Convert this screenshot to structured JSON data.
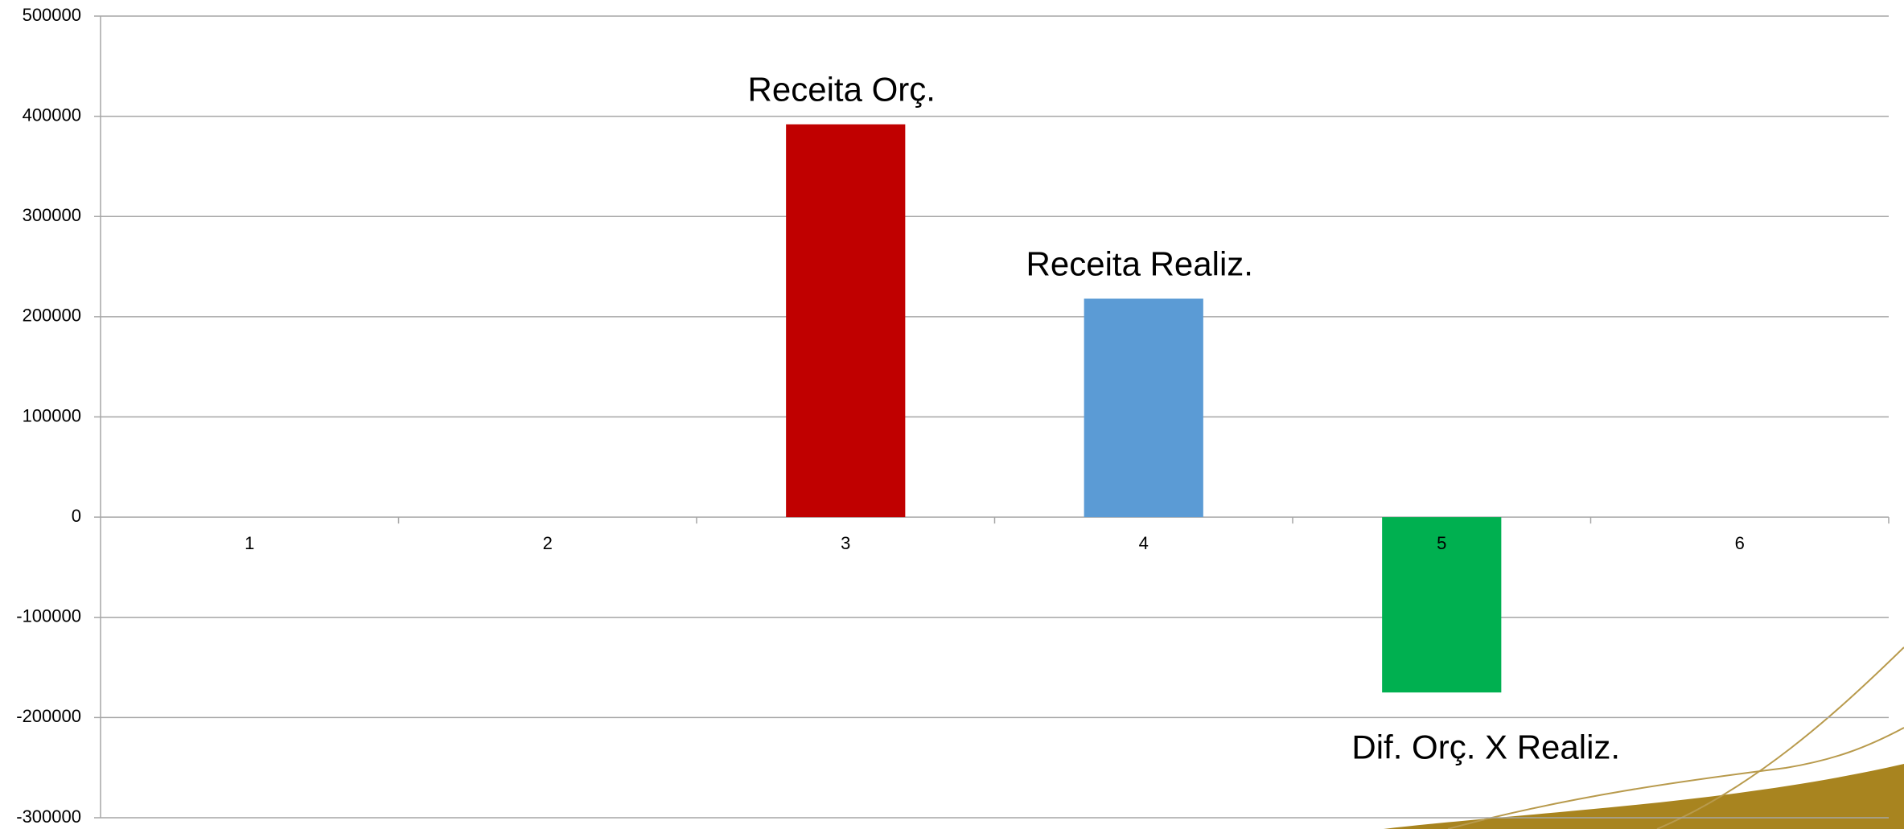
{
  "chart_data": {
    "type": "bar",
    "categories": [
      "1",
      "2",
      "3",
      "4",
      "5",
      "6"
    ],
    "values": [
      null,
      null,
      392000,
      218000,
      -175000,
      null
    ],
    "colors": [
      null,
      null,
      "#c00000",
      "#5b9bd5",
      "#00b050",
      null
    ],
    "bar_labels": [
      null,
      null,
      "Receita Orç.",
      "Receita Realiz.",
      "Dif. Orç. X Realiz.",
      null
    ],
    "ylim": [
      -300000,
      500000
    ],
    "yticks": [
      -300000,
      -200000,
      -100000,
      0,
      100000,
      200000,
      300000,
      400000,
      500000
    ],
    "grid": true
  }
}
